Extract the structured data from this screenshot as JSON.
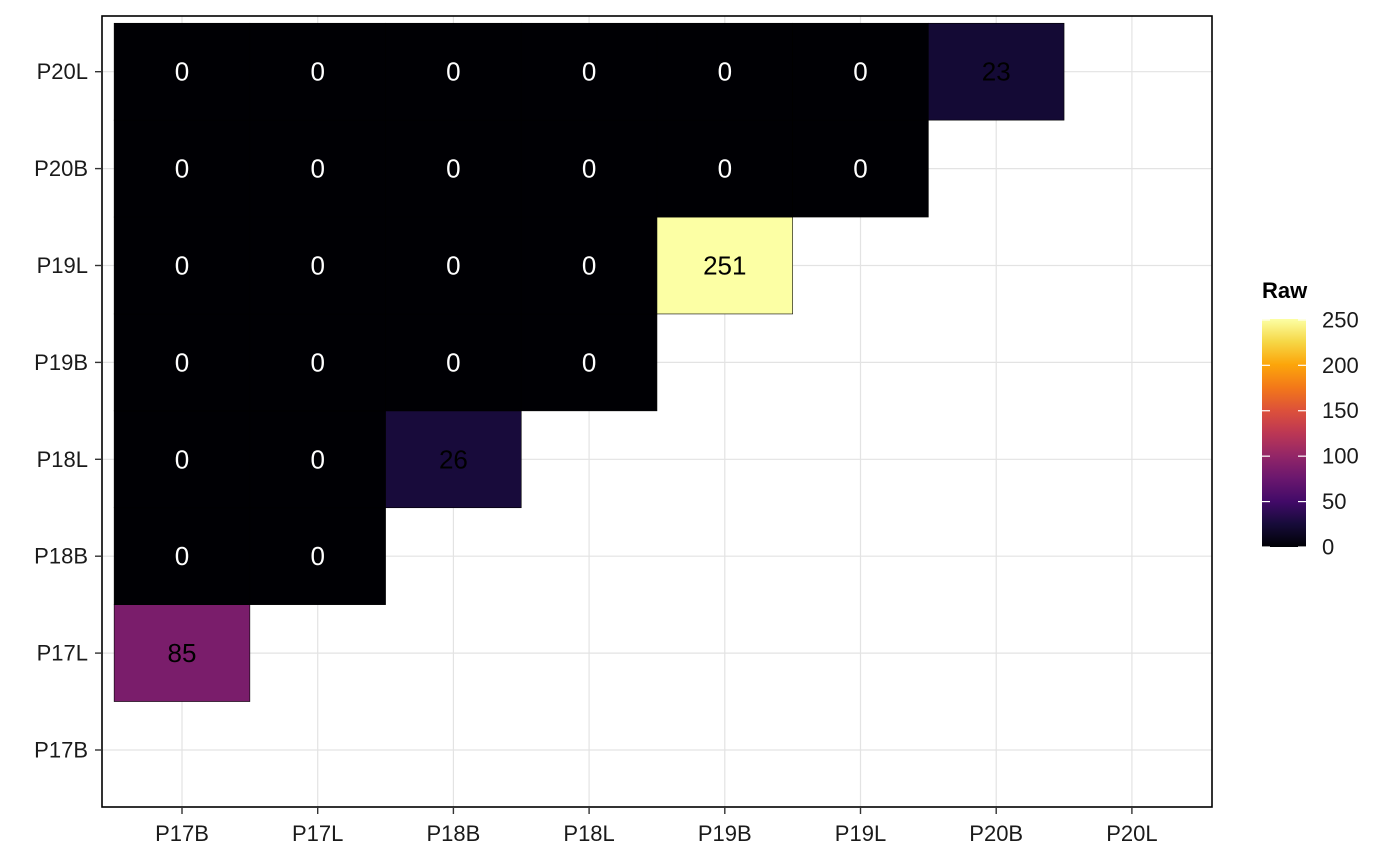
{
  "chart_data": {
    "type": "heatmap",
    "x_categories": [
      "P17B",
      "P17L",
      "P18B",
      "P18L",
      "P19B",
      "P19L",
      "P20B",
      "P20L"
    ],
    "y_categories": [
      "P17B",
      "P17L",
      "P18B",
      "P18L",
      "P19B",
      "P19L",
      "P20B",
      "P20L"
    ],
    "cells": [
      {
        "x": "P17B",
        "y": "P17L",
        "value": 85
      },
      {
        "x": "P17B",
        "y": "P18B",
        "value": 0
      },
      {
        "x": "P17L",
        "y": "P18B",
        "value": 0
      },
      {
        "x": "P17B",
        "y": "P18L",
        "value": 0
      },
      {
        "x": "P17L",
        "y": "P18L",
        "value": 0
      },
      {
        "x": "P18B",
        "y": "P18L",
        "value": 26
      },
      {
        "x": "P17B",
        "y": "P19B",
        "value": 0
      },
      {
        "x": "P17L",
        "y": "P19B",
        "value": 0
      },
      {
        "x": "P18B",
        "y": "P19B",
        "value": 0
      },
      {
        "x": "P18L",
        "y": "P19B",
        "value": 0
      },
      {
        "x": "P17B",
        "y": "P19L",
        "value": 0
      },
      {
        "x": "P17L",
        "y": "P19L",
        "value": 0
      },
      {
        "x": "P18B",
        "y": "P19L",
        "value": 0
      },
      {
        "x": "P18L",
        "y": "P19L",
        "value": 0
      },
      {
        "x": "P19B",
        "y": "P19L",
        "value": 251
      },
      {
        "x": "P17B",
        "y": "P20B",
        "value": 0
      },
      {
        "x": "P17L",
        "y": "P20B",
        "value": 0
      },
      {
        "x": "P18B",
        "y": "P20B",
        "value": 0
      },
      {
        "x": "P18L",
        "y": "P20B",
        "value": 0
      },
      {
        "x": "P19B",
        "y": "P20B",
        "value": 0
      },
      {
        "x": "P19L",
        "y": "P20B",
        "value": 0
      },
      {
        "x": "P17B",
        "y": "P20L",
        "value": 0
      },
      {
        "x": "P17L",
        "y": "P20L",
        "value": 0
      },
      {
        "x": "P18B",
        "y": "P20L",
        "value": 0
      },
      {
        "x": "P18L",
        "y": "P20L",
        "value": 0
      },
      {
        "x": "P19B",
        "y": "P20L",
        "value": 0
      },
      {
        "x": "P19L",
        "y": "P20L",
        "value": 0
      },
      {
        "x": "P20B",
        "y": "P20L",
        "value": 23
      }
    ],
    "title": "",
    "xlabel": "",
    "ylabel": "",
    "legend": {
      "title": "Raw",
      "position": "right",
      "ticks": [
        0,
        50,
        100,
        150,
        200,
        250
      ],
      "range": [
        0,
        251
      ],
      "colormap": "inferno"
    },
    "grid": true
  }
}
